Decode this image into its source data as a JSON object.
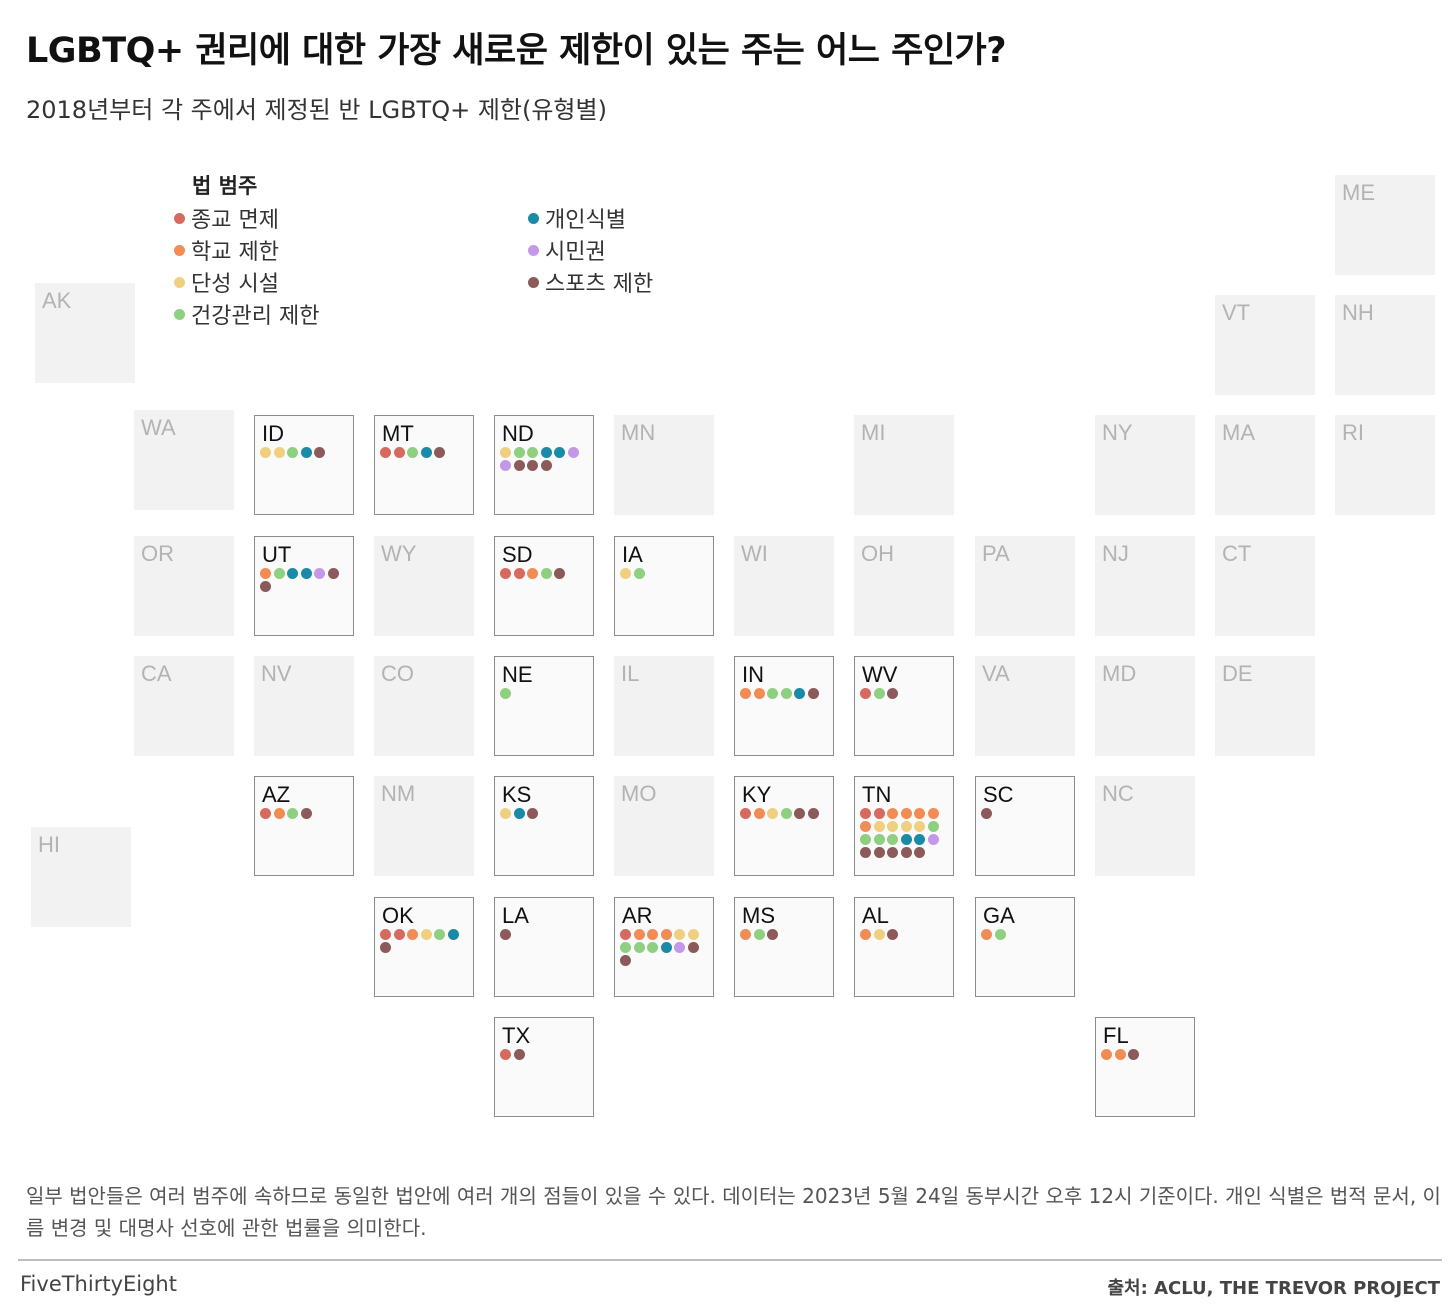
{
  "title": "LGBTQ+ 권리에 대한 가장 새로운 제한이 있는 주는 어느 주인가?",
  "subtitle": "2018년부터 각 주에서 제정된 반 LGBTQ+ 제한(유형별)",
  "legend": {
    "title": "법 범주",
    "items": [
      {
        "key": "religious",
        "label": "종교 면제",
        "color": "#d66a5f"
      },
      {
        "key": "school",
        "label": "학교 제한",
        "color": "#f28c55"
      },
      {
        "key": "facilities",
        "label": "단성 시설",
        "color": "#f0d080"
      },
      {
        "key": "healthcare",
        "label": "건강관리 제한",
        "color": "#8fd080"
      },
      {
        "key": "id",
        "label": "개인식별",
        "color": "#1a8aa6"
      },
      {
        "key": "civil",
        "label": "시민권",
        "color": "#c497e8"
      },
      {
        "key": "sports",
        "label": "스포츠 제한",
        "color": "#8c5a5a"
      }
    ]
  },
  "chart_data": {
    "type": "tile-grid-map",
    "title": "LGBTQ+ 권리에 대한 가장 새로운 제한이 있는 주는 어느 주인가?",
    "subtitle": "2018년부터 각 주에서 제정된 반 LGBTQ+ 제한(유형별)",
    "categories": [
      "종교 면제",
      "학교 제한",
      "단성 시설",
      "건강관리 제한",
      "개인식별",
      "시민권",
      "스포츠 제한"
    ],
    "states": [
      {
        "abbr": "AK",
        "dots": []
      },
      {
        "abbr": "ME",
        "dots": []
      },
      {
        "abbr": "VT",
        "dots": []
      },
      {
        "abbr": "NH",
        "dots": []
      },
      {
        "abbr": "WA",
        "dots": []
      },
      {
        "abbr": "ID",
        "dots": [
          "facilities",
          "facilities",
          "healthcare",
          "id",
          "sports"
        ]
      },
      {
        "abbr": "MT",
        "dots": [
          "religious",
          "religious",
          "healthcare",
          "id",
          "sports"
        ]
      },
      {
        "abbr": "ND",
        "dots": [
          "facilities",
          "healthcare",
          "healthcare",
          "id",
          "id",
          "civil",
          "civil",
          "sports",
          "sports",
          "sports"
        ]
      },
      {
        "abbr": "MN",
        "dots": []
      },
      {
        "abbr": "MI",
        "dots": []
      },
      {
        "abbr": "NY",
        "dots": []
      },
      {
        "abbr": "MA",
        "dots": []
      },
      {
        "abbr": "RI",
        "dots": []
      },
      {
        "abbr": "OR",
        "dots": []
      },
      {
        "abbr": "UT",
        "dots": [
          "school",
          "healthcare",
          "id",
          "id",
          "civil",
          "sports",
          "sports"
        ]
      },
      {
        "abbr": "WY",
        "dots": []
      },
      {
        "abbr": "SD",
        "dots": [
          "religious",
          "religious",
          "school",
          "healthcare",
          "sports"
        ]
      },
      {
        "abbr": "IA",
        "dots": [
          "facilities",
          "healthcare"
        ]
      },
      {
        "abbr": "WI",
        "dots": []
      },
      {
        "abbr": "OH",
        "dots": []
      },
      {
        "abbr": "PA",
        "dots": []
      },
      {
        "abbr": "NJ",
        "dots": []
      },
      {
        "abbr": "CT",
        "dots": []
      },
      {
        "abbr": "CA",
        "dots": []
      },
      {
        "abbr": "NV",
        "dots": []
      },
      {
        "abbr": "CO",
        "dots": []
      },
      {
        "abbr": "NE",
        "dots": [
          "healthcare"
        ]
      },
      {
        "abbr": "IL",
        "dots": []
      },
      {
        "abbr": "IN",
        "dots": [
          "school",
          "school",
          "healthcare",
          "healthcare",
          "id",
          "sports"
        ]
      },
      {
        "abbr": "WV",
        "dots": [
          "religious",
          "healthcare",
          "sports"
        ]
      },
      {
        "abbr": "VA",
        "dots": []
      },
      {
        "abbr": "MD",
        "dots": []
      },
      {
        "abbr": "DE",
        "dots": []
      },
      {
        "abbr": "HI",
        "dots": []
      },
      {
        "abbr": "AZ",
        "dots": [
          "religious",
          "school",
          "healthcare",
          "sports"
        ]
      },
      {
        "abbr": "NM",
        "dots": []
      },
      {
        "abbr": "KS",
        "dots": [
          "facilities",
          "id",
          "sports"
        ]
      },
      {
        "abbr": "MO",
        "dots": []
      },
      {
        "abbr": "KY",
        "dots": [
          "religious",
          "school",
          "facilities",
          "healthcare",
          "sports",
          "sports"
        ]
      },
      {
        "abbr": "TN",
        "dots": [
          "religious",
          "religious",
          "school",
          "school",
          "school",
          "school",
          "school",
          "facilities",
          "facilities",
          "facilities",
          "facilities",
          "healthcare",
          "healthcare",
          "healthcare",
          "healthcare",
          "id",
          "id",
          "civil",
          "sports",
          "sports",
          "sports",
          "sports",
          "sports"
        ]
      },
      {
        "abbr": "SC",
        "dots": [
          "sports"
        ]
      },
      {
        "abbr": "NC",
        "dots": []
      },
      {
        "abbr": "OK",
        "dots": [
          "religious",
          "religious",
          "school",
          "facilities",
          "healthcare",
          "id",
          "sports"
        ]
      },
      {
        "abbr": "LA",
        "dots": [
          "sports"
        ]
      },
      {
        "abbr": "AR",
        "dots": [
          "religious",
          "school",
          "school",
          "school",
          "facilities",
          "facilities",
          "healthcare",
          "healthcare",
          "healthcare",
          "id",
          "civil",
          "sports",
          "sports"
        ]
      },
      {
        "abbr": "MS",
        "dots": [
          "school",
          "healthcare",
          "sports"
        ]
      },
      {
        "abbr": "AL",
        "dots": [
          "school",
          "facilities",
          "sports"
        ]
      },
      {
        "abbr": "GA",
        "dots": [
          "school",
          "healthcare"
        ]
      },
      {
        "abbr": "TX",
        "dots": [
          "religious",
          "sports"
        ]
      },
      {
        "abbr": "FL",
        "dots": [
          "school",
          "school",
          "sports"
        ]
      }
    ]
  },
  "note": "일부 법안들은 여러 범주에 속하므로 동일한 법안에 여러 개의 점들이 있을 수 있다. 데이터는 2023년 5월 24일 동부시간 오후 12시 기준이다. 개인 식별은 법적 문서, 이름 변경 및 대명사 선호에 관한 법률을 의미한다.",
  "footer": {
    "brand": "FiveThirtyEight",
    "source": "출처: ACLU, THE TREVOR PROJECT"
  }
}
